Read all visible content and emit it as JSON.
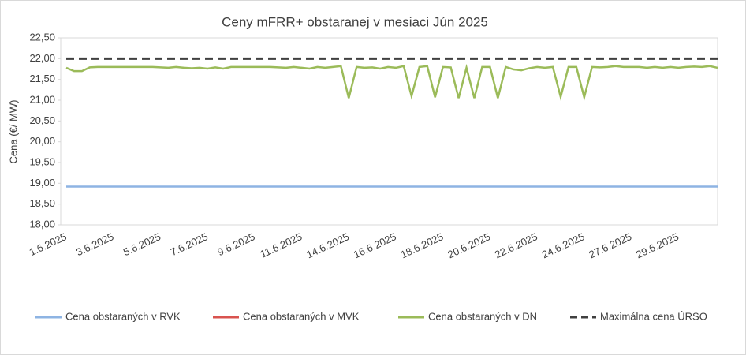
{
  "chart_data": {
    "type": "line",
    "title": "Ceny mFRR+ obstaranej v mesiaci Jún 2025",
    "y_label": "Cena (€/ MW)",
    "categories": [
      "1.6.2025",
      null,
      null,
      null,
      null,
      null,
      "3.6.2025",
      null,
      null,
      null,
      null,
      null,
      "5.6.2025",
      null,
      null,
      null,
      null,
      null,
      "7.6.2025",
      null,
      null,
      null,
      null,
      null,
      "9.6.2025",
      null,
      null,
      null,
      null,
      null,
      "11.6.2025",
      null,
      null,
      null,
      null,
      null,
      "14.6.2025",
      null,
      null,
      null,
      null,
      null,
      "16.6.2025",
      null,
      null,
      null,
      null,
      null,
      "18.6.2025",
      null,
      null,
      null,
      null,
      null,
      "20.6.2025",
      null,
      null,
      null,
      null,
      null,
      "22.6.2025",
      null,
      null,
      null,
      null,
      null,
      "24.6.2025",
      null,
      null,
      null,
      null,
      null,
      "27.6.2025",
      null,
      null,
      null,
      null,
      null,
      "29.6.2025",
      null,
      null,
      null,
      null,
      null
    ],
    "ylim": [
      18,
      22.5
    ],
    "yticks": [
      {
        "value": 18,
        "label": "18,00"
      },
      {
        "value": 18.5,
        "label": "18,50"
      },
      {
        "value": 19,
        "label": "19,00"
      },
      {
        "value": 19.5,
        "label": "19,50"
      },
      {
        "value": 20,
        "label": "20,00"
      },
      {
        "value": 20.5,
        "label": "20,50"
      },
      {
        "value": 21,
        "label": "21,00"
      },
      {
        "value": 21.5,
        "label": "21,50"
      },
      {
        "value": 22,
        "label": "22,00"
      },
      {
        "value": 22.5,
        "label": "22,50"
      }
    ],
    "grid": false,
    "legend": "bottom",
    "series": [
      {
        "name": "Cena obstaraných v RVK",
        "color": "#8eb4e3",
        "dashed": false,
        "values": [
          18.92,
          18.92,
          18.92,
          18.92,
          18.92,
          18.92,
          18.92,
          18.92,
          18.92,
          18.92,
          18.92,
          18.92,
          18.92,
          18.92,
          18.92,
          18.92,
          18.92,
          18.92,
          18.92,
          18.92,
          18.92,
          18.92,
          18.92,
          18.92,
          18.92,
          18.92,
          18.92,
          18.92,
          18.92,
          18.92,
          18.92,
          18.92,
          18.92,
          18.92,
          18.92,
          18.92,
          18.92,
          18.92,
          18.92,
          18.92,
          18.92,
          18.92,
          18.92,
          18.92,
          18.92,
          18.92,
          18.92,
          18.92,
          18.92,
          18.92,
          18.92,
          18.92,
          18.92,
          18.92,
          18.92,
          18.92,
          18.92,
          18.92,
          18.92,
          18.92,
          18.92,
          18.92,
          18.92,
          18.92,
          18.92,
          18.92,
          18.92,
          18.92,
          18.92,
          18.92,
          18.92,
          18.92,
          18.92,
          18.92,
          18.92,
          18.92,
          18.92,
          18.92,
          18.92,
          18.92,
          18.92,
          18.92,
          18.92,
          18.92
        ]
      },
      {
        "name": "Cena obstaraných v MVK",
        "color": "#d9534f",
        "dashed": false,
        "values": [
          null,
          null,
          null,
          null,
          null,
          null,
          null,
          null,
          null,
          null,
          null,
          null,
          null,
          null,
          null,
          null,
          null,
          null,
          null,
          null,
          null,
          null,
          null,
          null,
          null,
          null,
          null,
          null,
          null,
          null,
          null,
          null,
          null,
          null,
          null,
          null,
          null,
          null,
          null,
          null,
          null,
          null,
          null,
          null,
          null,
          null,
          null,
          null,
          null,
          null,
          null,
          null,
          null,
          null,
          null,
          null,
          null,
          null,
          null,
          null,
          null,
          null,
          null,
          null,
          null,
          null,
          null,
          null,
          null,
          null,
          null,
          null,
          null,
          null,
          null,
          null,
          null,
          null,
          null,
          null,
          null,
          null,
          null,
          null
        ]
      },
      {
        "name": "Cena obstaraných v DN",
        "color": "#9bbb59",
        "dashed": false,
        "values": [
          21.78,
          21.7,
          21.7,
          21.79,
          21.8,
          21.8,
          21.8,
          21.8,
          21.8,
          21.8,
          21.8,
          21.8,
          21.79,
          21.78,
          21.8,
          21.78,
          21.77,
          21.78,
          21.76,
          21.79,
          21.76,
          21.8,
          21.8,
          21.8,
          21.8,
          21.8,
          21.8,
          21.79,
          21.78,
          21.8,
          21.78,
          21.76,
          21.8,
          21.78,
          21.8,
          21.82,
          21.05,
          21.8,
          21.78,
          21.79,
          21.76,
          21.8,
          21.78,
          21.82,
          21.1,
          21.8,
          21.82,
          21.07,
          21.8,
          21.79,
          21.05,
          21.78,
          21.05,
          21.8,
          21.8,
          21.05,
          21.8,
          21.74,
          21.72,
          21.77,
          21.8,
          21.78,
          21.8,
          21.08,
          21.8,
          21.8,
          21.07,
          21.8,
          21.79,
          21.8,
          21.82,
          21.8,
          21.8,
          21.8,
          21.78,
          21.8,
          21.78,
          21.8,
          21.78,
          21.8,
          21.81,
          21.8,
          21.82,
          21.78
        ]
      },
      {
        "name": "Maximálna cena ÚRSO",
        "color": "#404040",
        "dashed": true,
        "values": [
          22,
          22,
          22,
          22,
          22,
          22,
          22,
          22,
          22,
          22,
          22,
          22,
          22,
          22,
          22,
          22,
          22,
          22,
          22,
          22,
          22,
          22,
          22,
          22,
          22,
          22,
          22,
          22,
          22,
          22,
          22,
          22,
          22,
          22,
          22,
          22,
          22,
          22,
          22,
          22,
          22,
          22,
          22,
          22,
          22,
          22,
          22,
          22,
          22,
          22,
          22,
          22,
          22,
          22,
          22,
          22,
          22,
          22,
          22,
          22,
          22,
          22,
          22,
          22,
          22,
          22,
          22,
          22,
          22,
          22,
          22,
          22,
          22,
          22,
          22,
          22,
          22,
          22,
          22,
          22,
          22,
          22,
          22,
          22
        ]
      }
    ]
  }
}
